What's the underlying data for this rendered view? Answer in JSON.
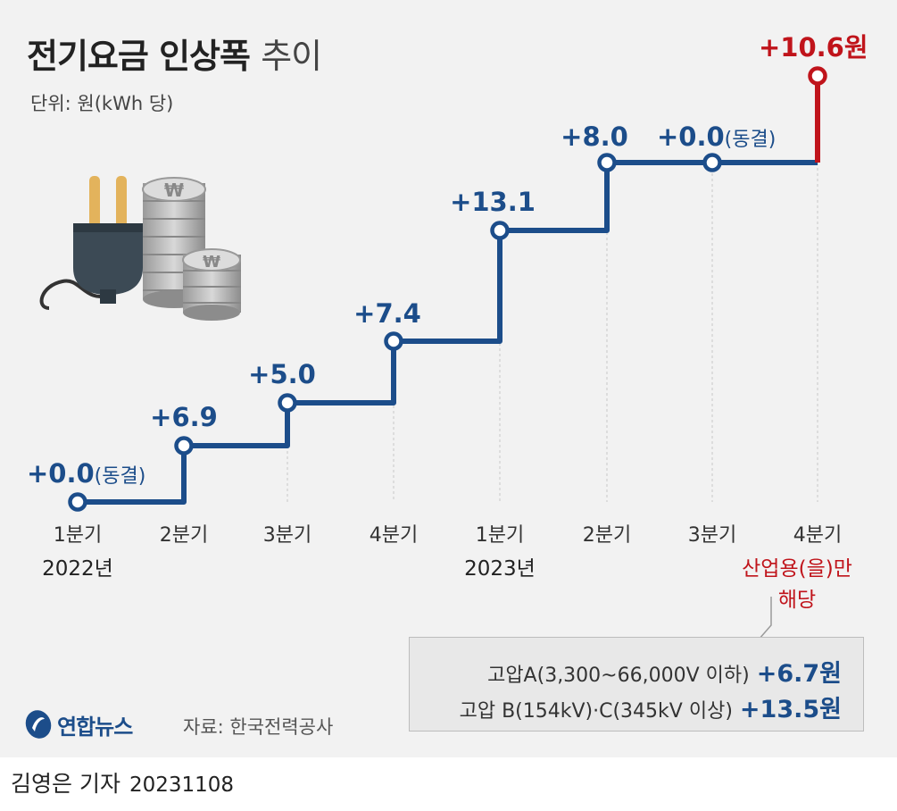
{
  "title_bold": "전기요금 인상폭",
  "title_light": "추이",
  "unit": "단위: 원(kWh 당)",
  "chart_data": {
    "type": "line",
    "step": true,
    "categories": [
      "1분기",
      "2분기",
      "3분기",
      "4분기",
      "1분기",
      "2분기",
      "3분기",
      "4분기"
    ],
    "years": [
      {
        "label": "2022년",
        "index": 0
      },
      {
        "label": "2023년",
        "index": 4
      }
    ],
    "values": [
      0.0,
      6.9,
      5.0,
      7.4,
      13.1,
      8.0,
      0.0,
      10.6
    ],
    "labels": [
      "+0.0",
      "+6.9",
      "+5.0",
      "+7.4",
      "+13.1",
      "+8.0",
      "+0.0",
      "+10.6원"
    ],
    "suffixes": [
      "(동결)",
      "",
      "",
      "",
      "",
      "",
      "(동결)",
      ""
    ],
    "highlight_index": 7,
    "highlight_note": [
      "산업용(을)만",
      "해당"
    ],
    "colors": {
      "main": "#1c4d8a",
      "highlight": "#c0141b"
    }
  },
  "note": {
    "rows": [
      {
        "label": "고압A(3,300~66,000V 이하)",
        "value": "+6.7원"
      },
      {
        "label": "고압 B(154kV)·C(345kV 이상)",
        "value": "+13.5원"
      }
    ]
  },
  "logo": "연합뉴스",
  "source": "자료: 한국전력공사",
  "reporter": "김영은 기자",
  "date": "20231108",
  "icons": [
    "power-plug-icon",
    "won-coins-icon"
  ]
}
